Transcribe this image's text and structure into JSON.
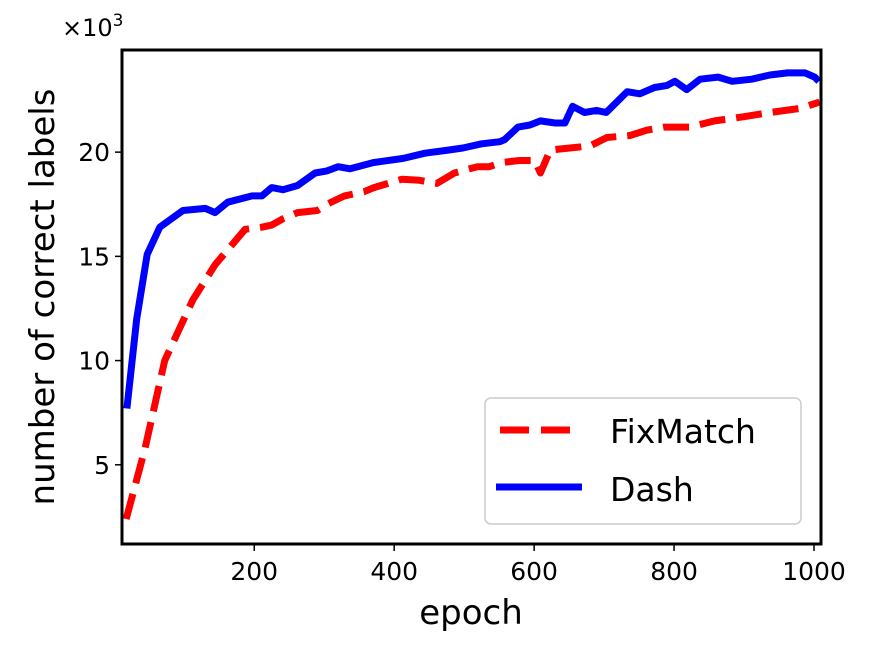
{
  "chart_data": {
    "type": "line",
    "title": "",
    "xlabel": "epoch",
    "ylabel": "number of correct labels",
    "y_offset_label": "×10³",
    "y_offset_base": "×10",
    "y_offset_exp": "3",
    "xlim": [
      11,
      1010
    ],
    "ylim": [
      1.2,
      24.9
    ],
    "xticks": [
      200,
      400,
      600,
      800,
      1000
    ],
    "xtick_labels": [
      "200",
      "400",
      "600",
      "800",
      "1000"
    ],
    "yticks": [
      5,
      10,
      15,
      20
    ],
    "ytick_labels": [
      "5",
      "10",
      "15",
      "20"
    ],
    "grid": false,
    "legend_position": "lower right",
    "series": [
      {
        "name": "FixMatch",
        "color": "#ff0000",
        "style": "dashed",
        "x": [
          17,
          44,
          72,
          112,
          144,
          187,
          211,
          225,
          241,
          262,
          290,
          304,
          329,
          357,
          371,
          411,
          436,
          461,
          486,
          519,
          536,
          553,
          579,
          601,
          609,
          623,
          651,
          680,
          704,
          737,
          761,
          786,
          822,
          858,
          900,
          937,
          980,
          1008
        ],
        "values": [
          2.4,
          5.8,
          10.0,
          12.9,
          14.6,
          16.3,
          16.4,
          16.5,
          16.8,
          17.1,
          17.2,
          17.5,
          17.9,
          18.1,
          18.3,
          18.7,
          18.65,
          18.5,
          19.0,
          19.3,
          19.3,
          19.5,
          19.6,
          19.6,
          19.0,
          20.1,
          20.2,
          20.3,
          20.7,
          20.8,
          21.05,
          21.2,
          21.2,
          21.5,
          21.7,
          21.9,
          22.1,
          22.4
        ]
      },
      {
        "name": "Dash",
        "color": "#0000ff",
        "style": "solid",
        "x": [
          18,
          32,
          47,
          65,
          98,
          130,
          144,
          162,
          197,
          211,
          225,
          241,
          262,
          287,
          304,
          320,
          337,
          370,
          413,
          444,
          477,
          498,
          525,
          551,
          558,
          577,
          594,
          609,
          630,
          644,
          655,
          672,
          689,
          703,
          733,
          751,
          772,
          790,
          801,
          818,
          837,
          863,
          883,
          911,
          937,
          962,
          987,
          1001,
          1007
        ],
        "values": [
          7.7,
          12.0,
          15.1,
          16.4,
          17.2,
          17.3,
          17.1,
          17.6,
          17.9,
          17.9,
          18.3,
          18.2,
          18.4,
          19.0,
          19.1,
          19.3,
          19.2,
          19.5,
          19.7,
          19.95,
          20.1,
          20.2,
          20.4,
          20.5,
          20.6,
          21.2,
          21.3,
          21.5,
          21.4,
          21.4,
          22.2,
          21.9,
          22.0,
          21.9,
          22.9,
          22.8,
          23.1,
          23.2,
          23.4,
          23.0,
          23.5,
          23.6,
          23.4,
          23.5,
          23.7,
          23.8,
          23.8,
          23.6,
          23.4
        ]
      }
    ]
  },
  "legend": {
    "items": [
      {
        "label": "FixMatch",
        "color": "#ff0000"
      },
      {
        "label": "Dash",
        "color": "#0000ff"
      }
    ]
  }
}
